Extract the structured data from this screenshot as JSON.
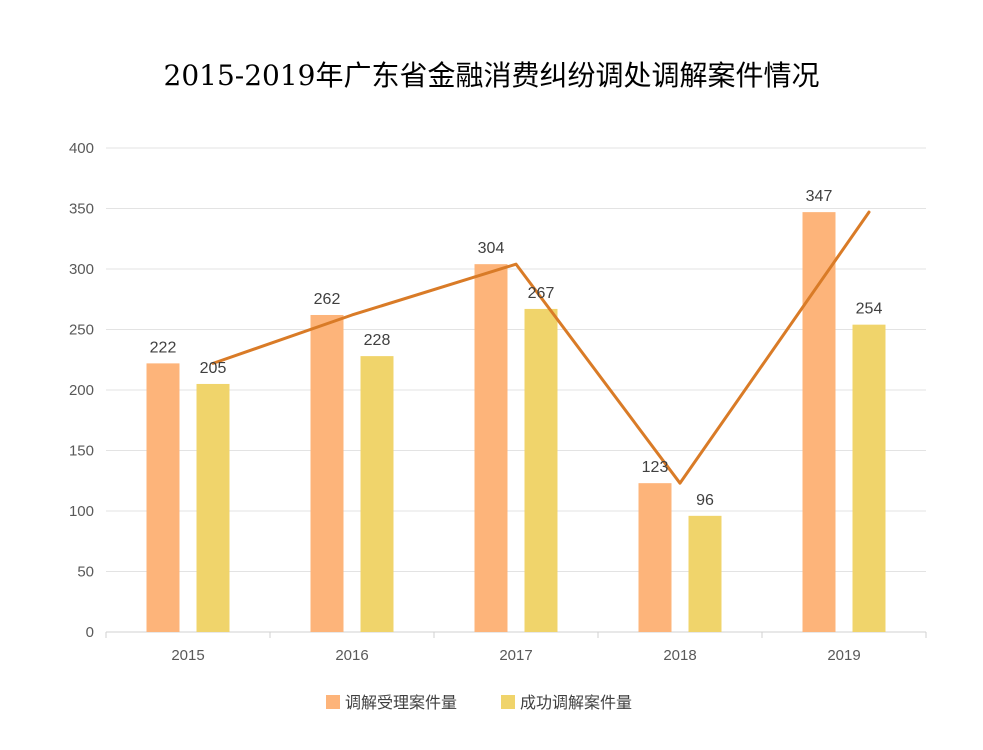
{
  "chart_data": {
    "type": "bar",
    "title": "2015-2019年广东省金融消费纠纷调处调解案件情况",
    "categories": [
      "2015",
      "2016",
      "2017",
      "2018",
      "2019"
    ],
    "series": [
      {
        "name": "调解受理案件量",
        "values": [
          222,
          262,
          304,
          123,
          347
        ],
        "color": "#FDB47A"
      },
      {
        "name": "成功调解案件量",
        "values": [
          205,
          228,
          267,
          96,
          254
        ],
        "color": "#F0D46B"
      }
    ],
    "overlay_line": {
      "series_index": 0,
      "color": "#D97B27"
    },
    "ylim": [
      0,
      400
    ],
    "yticks": [
      0,
      50,
      100,
      150,
      200,
      250,
      300,
      350,
      400
    ],
    "grid": true,
    "legend": "bottom",
    "xlabel": "",
    "ylabel": ""
  }
}
